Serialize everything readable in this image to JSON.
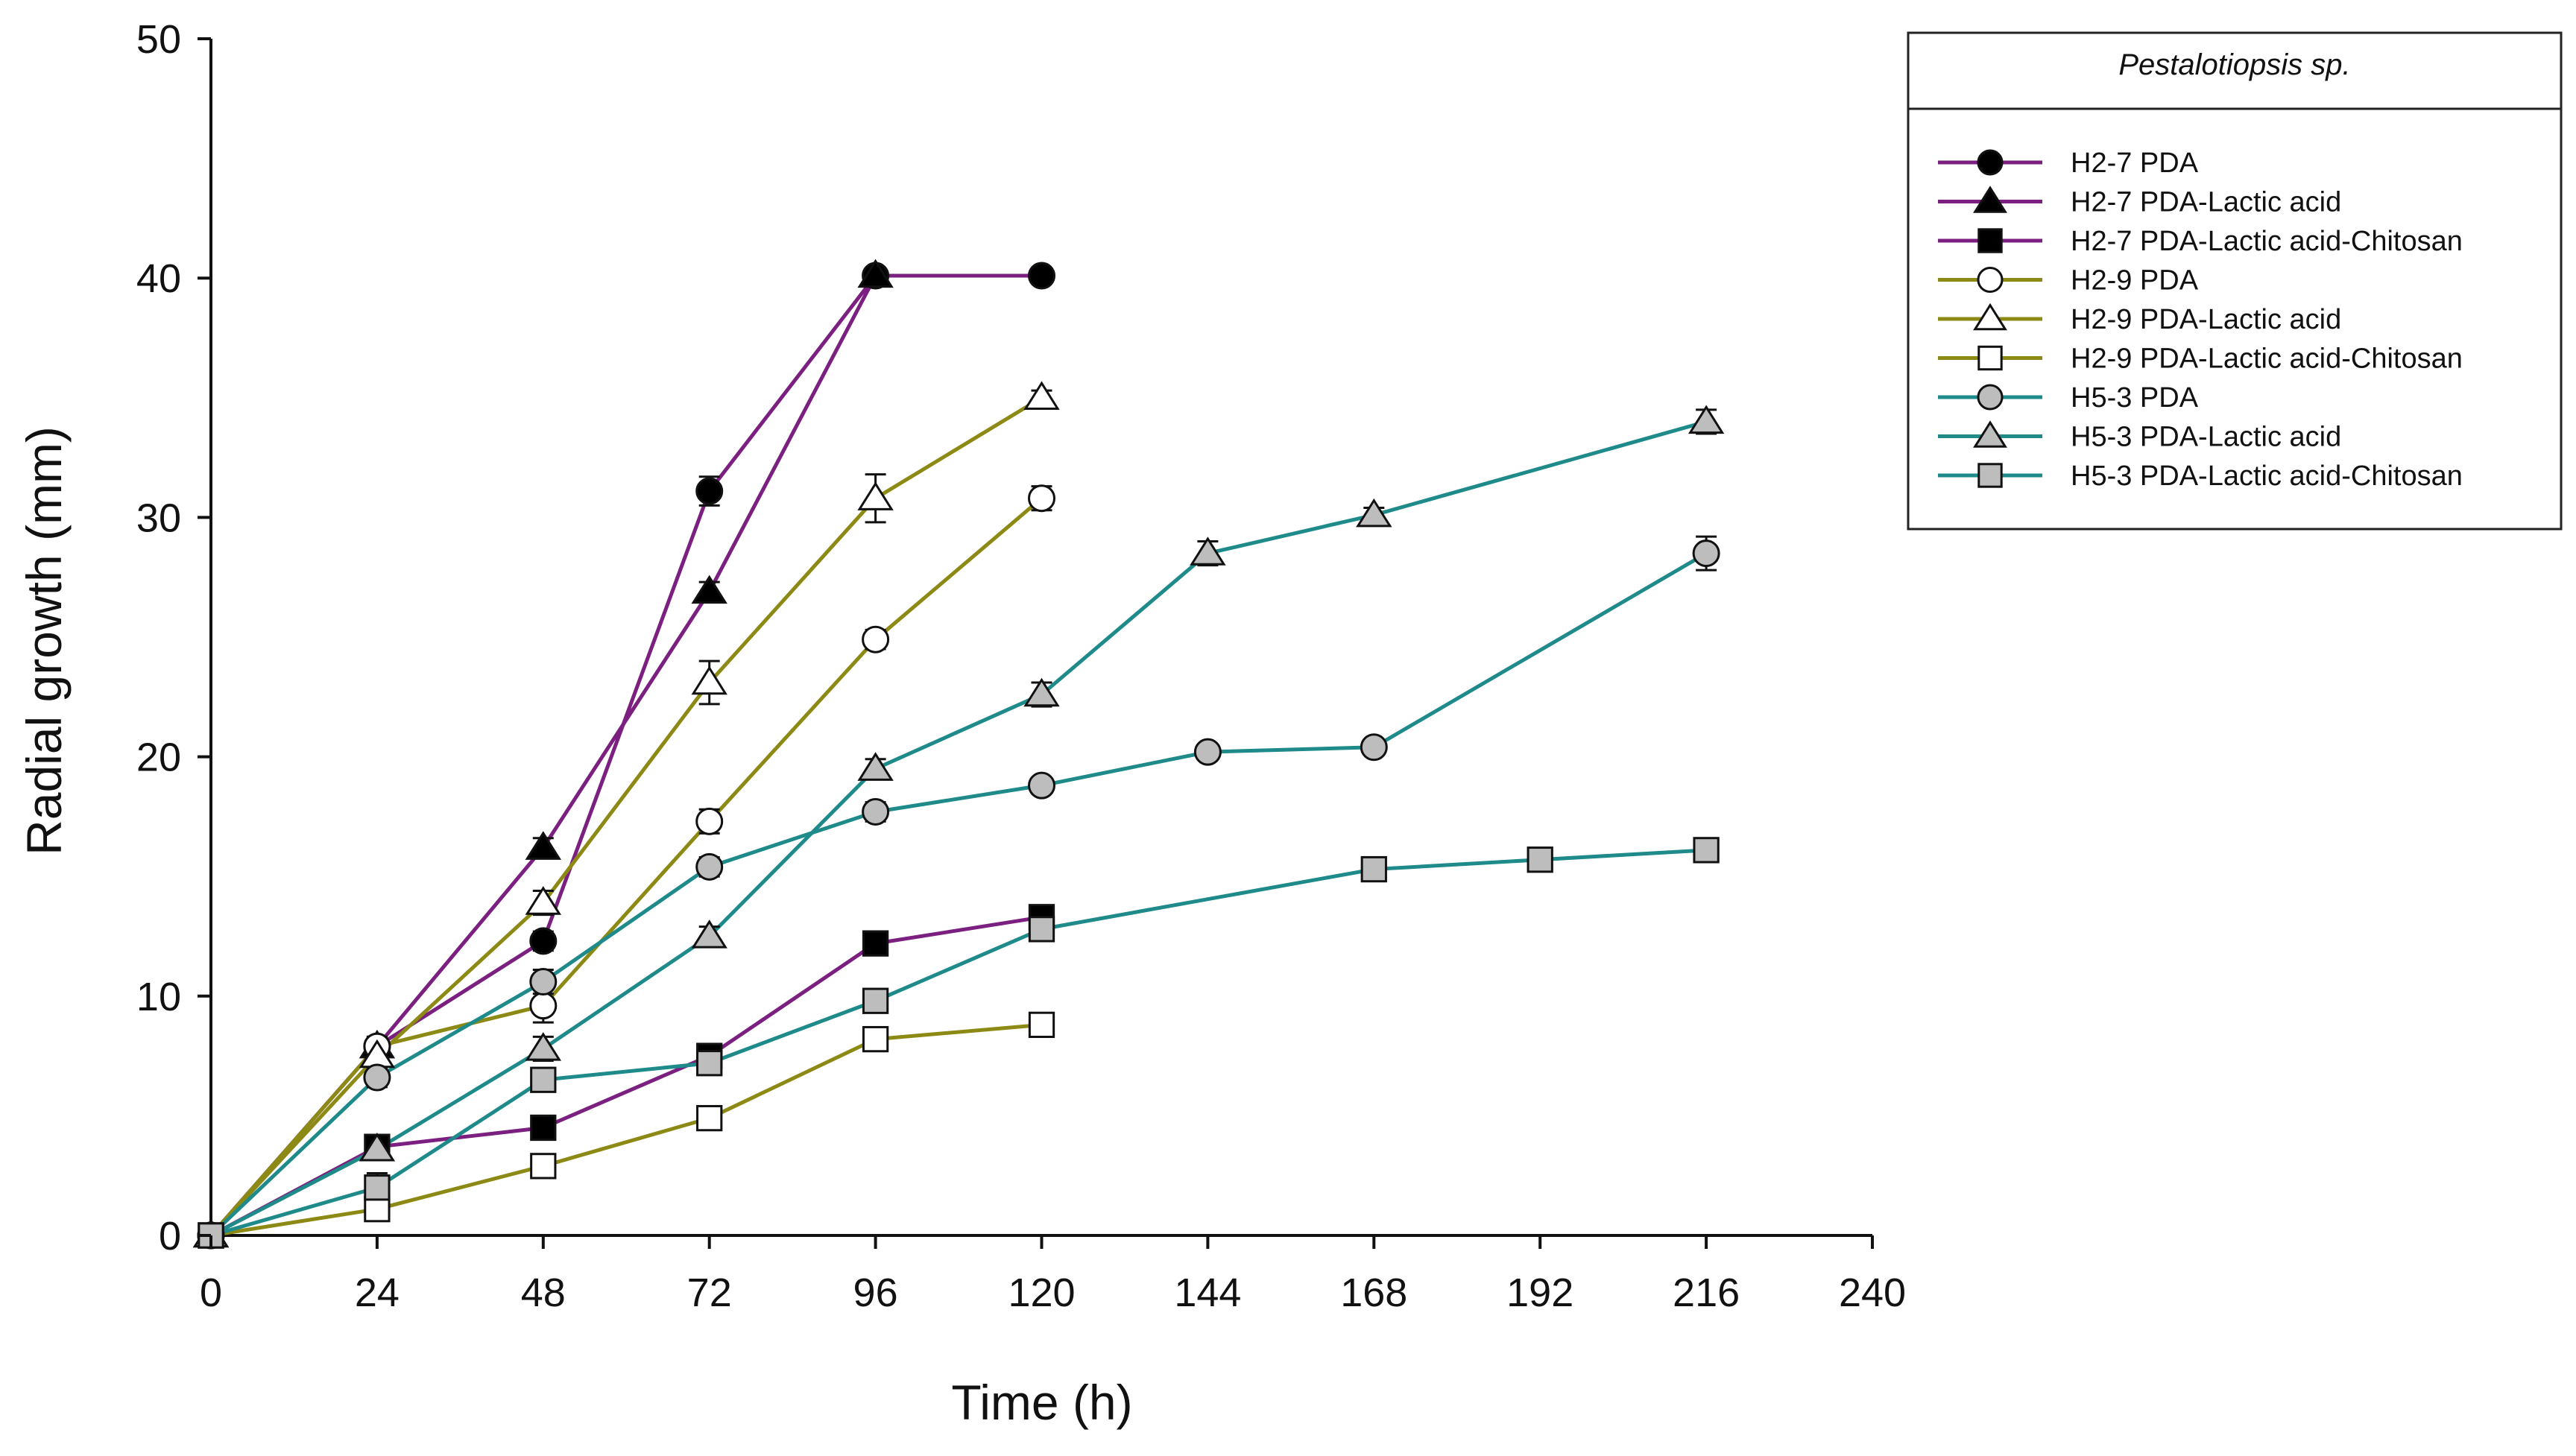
{
  "chart_data": {
    "type": "line",
    "title": "",
    "xlabel": "Time (h)",
    "ylabel": "Radial growth (mm)",
    "xlim": [
      0,
      240
    ],
    "ylim": [
      0,
      50
    ],
    "xticks": [
      0,
      24,
      48,
      72,
      96,
      120,
      144,
      168,
      192,
      216,
      240
    ],
    "yticks": [
      0,
      10,
      20,
      30,
      40,
      50
    ],
    "legend_title": "Pestalotiopsis sp.",
    "legend_position": "right",
    "colors": {
      "H2-7": "#7b1f80",
      "H2-9": "#8c8a14",
      "H5-3": "#1f8a8a"
    },
    "series": [
      {
        "name": "H2-7 PDA",
        "color": "#7b1f80",
        "marker": "circle",
        "fill": "#000000",
        "x": [
          0,
          24,
          48,
          72,
          96,
          120
        ],
        "y": [
          0,
          7.9,
          12.3,
          31.1,
          40.1,
          40.1
        ],
        "err": [
          0,
          0.4,
          0.4,
          0.6,
          0.3,
          0.3
        ]
      },
      {
        "name": "H2-7 PDA-Lactic acid",
        "color": "#7b1f80",
        "marker": "triangle",
        "fill": "#000000",
        "x": [
          0,
          24,
          48,
          72,
          96
        ],
        "y": [
          0,
          7.9,
          16.2,
          26.9,
          40.1
        ],
        "err": [
          0,
          0.3,
          0.4,
          0.4,
          0.3
        ]
      },
      {
        "name": "H2-7 PDA-Lactic acid-Chitosan",
        "color": "#7b1f80",
        "marker": "square",
        "fill": "#000000",
        "x": [
          0,
          24,
          48,
          72,
          96,
          120
        ],
        "y": [
          0,
          3.7,
          4.5,
          7.5,
          12.2,
          13.3
        ],
        "err": [
          0,
          0.3,
          0.3,
          0.4,
          0.3,
          0.4
        ]
      },
      {
        "name": "H2-9 PDA",
        "color": "#8c8a14",
        "marker": "circle",
        "fill": "#ffffff",
        "x": [
          0,
          24,
          48,
          72,
          96,
          120
        ],
        "y": [
          0,
          7.9,
          9.6,
          17.3,
          24.9,
          30.8
        ],
        "err": [
          0,
          0.4,
          0.7,
          0.5,
          0.4,
          0.5
        ]
      },
      {
        "name": "H2-9 PDA-Lactic acid",
        "color": "#8c8a14",
        "marker": "triangle",
        "fill": "#ffffff",
        "x": [
          0,
          24,
          48,
          72,
          96,
          120
        ],
        "y": [
          0,
          7.5,
          13.9,
          23.1,
          30.8,
          35.0
        ],
        "err": [
          0,
          0.4,
          0.5,
          0.9,
          1.0,
          0.3
        ]
      },
      {
        "name": "H2-9 PDA-Lactic acid-Chitosan",
        "color": "#8c8a14",
        "marker": "square",
        "fill": "#ffffff",
        "x": [
          0,
          24,
          48,
          72,
          96,
          120
        ],
        "y": [
          0,
          1.1,
          2.9,
          4.9,
          8.2,
          8.8
        ],
        "err": [
          0,
          0.3,
          0.3,
          0.3,
          0.4,
          0.3
        ]
      },
      {
        "name": "H5-3 PDA",
        "color": "#1f8a8a",
        "marker": "circle",
        "fill": "#bdbdbd",
        "x": [
          0,
          24,
          48,
          72,
          96,
          120,
          144,
          168,
          216
        ],
        "y": [
          0,
          6.6,
          10.6,
          15.4,
          17.7,
          18.8,
          20.2,
          20.4,
          28.5
        ],
        "err": [
          0,
          0.4,
          0.5,
          0.4,
          0.4,
          0.3,
          0.3,
          0.3,
          0.7
        ]
      },
      {
        "name": "H5-3 PDA-Lactic acid",
        "color": "#1f8a8a",
        "marker": "triangle",
        "fill": "#bdbdbd",
        "x": [
          0,
          24,
          48,
          72,
          96,
          120,
          144,
          168,
          216
        ],
        "y": [
          0,
          3.6,
          7.8,
          12.5,
          19.5,
          22.6,
          28.5,
          30.1,
          34.0
        ],
        "err": [
          0,
          0.3,
          0.5,
          0.4,
          0.4,
          0.5,
          0.5,
          0.3,
          0.5
        ]
      },
      {
        "name": "H5-3 PDA-Lactic acid-Chitosan",
        "color": "#1f8a8a",
        "marker": "square",
        "fill": "#bdbdbd",
        "x": [
          0,
          24,
          48,
          72,
          96,
          120,
          168,
          192,
          216
        ],
        "y": [
          0,
          2.0,
          6.5,
          7.2,
          9.8,
          12.8,
          15.3,
          15.7,
          16.1
        ],
        "err": [
          0,
          0.6,
          0.4,
          0.4,
          0.4,
          0.4,
          0.4,
          0.3,
          0.3
        ]
      }
    ]
  }
}
